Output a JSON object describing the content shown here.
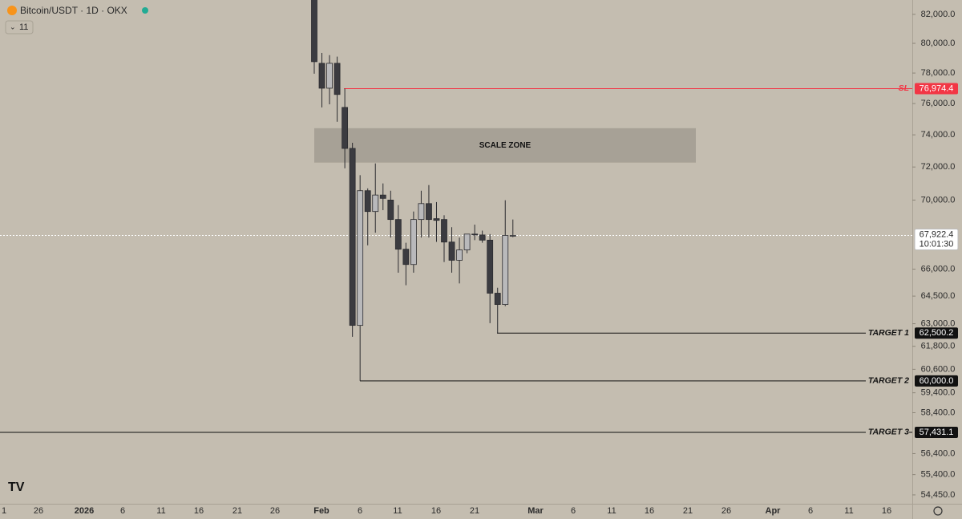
{
  "chart_data": {
    "type": "candlestick",
    "title": "Bitcoin/USDT · 1D · OKX",
    "indicator_count": 11,
    "log_scale": true,
    "ylim": [
      54040,
      83010
    ],
    "yticks": [
      {
        "value": 82000,
        "label": "82,000.0"
      },
      {
        "value": 80000,
        "label": "80,000.0"
      },
      {
        "value": 78000,
        "label": "78,000.0"
      },
      {
        "value": 76000,
        "label": "76,000.0"
      },
      {
        "value": 74000,
        "label": "74,000.0"
      },
      {
        "value": 72000,
        "label": "72,000.0"
      },
      {
        "value": 70000,
        "label": "70,000.0"
      },
      {
        "value": 66000,
        "label": "66,000.0"
      },
      {
        "value": 64500,
        "label": "64,500.0"
      },
      {
        "value": 63000,
        "label": "63,000.0"
      },
      {
        "value": 61800,
        "label": "61,800.0"
      },
      {
        "value": 60600,
        "label": "60,600.0"
      },
      {
        "value": 59400,
        "label": "59,400.0"
      },
      {
        "value": 58400,
        "label": "58,400.0"
      },
      {
        "value": 56400,
        "label": "56,400.0"
      },
      {
        "value": 55400,
        "label": "55,400.0"
      },
      {
        "value": 54450,
        "label": "54,450.0"
      }
    ],
    "xticks": [
      "1",
      "26",
      "2026",
      "6",
      "11",
      "16",
      "21",
      "26",
      "Feb",
      "6",
      "11",
      "16",
      "21",
      "Mar",
      "6",
      "11",
      "16",
      "21",
      "26",
      "Apr",
      "6",
      "11",
      "16"
    ],
    "up_color": "#b9b9bb",
    "down_color": "#3b3b40",
    "open": [
      84500,
      78650,
      77000,
      78650,
      75750,
      73150,
      62910,
      70560,
      69320,
      70300,
      70000,
      68850,
      67130,
      66260,
      68850,
      69790,
      68900,
      68850,
      67540,
      66500,
      67090,
      68000,
      67950,
      67650,
      64660,
      64040,
      67900
    ],
    "high": [
      85000,
      79350,
      79200,
      79100,
      76970,
      73500,
      71500,
      70700,
      72220,
      71000,
      70560,
      69700,
      67500,
      69320,
      70560,
      70900,
      69880,
      69100,
      68400,
      67800,
      67800,
      68550,
      68200,
      68000,
      64960,
      69990,
      68850
    ],
    "low": [
      77960,
      75750,
      75950,
      74830,
      71920,
      62300,
      60000,
      67350,
      68080,
      69400,
      67800,
      65800,
      65100,
      65800,
      67800,
      67800,
      67550,
      66400,
      65800,
      65200,
      66900,
      67650,
      67500,
      63030,
      62500,
      63950,
      67820
    ],
    "close": [
      78760,
      77000,
      78650,
      76590,
      73150,
      62910,
      70560,
      69320,
      70300,
      70100,
      68850,
      67130,
      66260,
      68850,
      69790,
      68850,
      68800,
      67540,
      66500,
      67090,
      68000,
      67950,
      67650,
      64660,
      64040,
      67922.4,
      67922.4
    ],
    "zone": {
      "label": "SCALE ZONE",
      "low": 72270,
      "high": 74420
    },
    "levels": [
      {
        "label": "SL",
        "value": 76974.4,
        "value_label": "76,974.4",
        "color": "#f23645"
      },
      {
        "label": "TARGET 1",
        "value": 62500.2,
        "value_label": "62,500.2",
        "color": "#111111"
      },
      {
        "label": "TARGET 2",
        "value": 60000.0,
        "value_label": "60,000.0",
        "color": "#111111"
      },
      {
        "label": "TARGET 3",
        "value": 57431.1,
        "value_label": "57,431.1",
        "color": "#111111"
      }
    ],
    "last_price": {
      "value": 67922.4,
      "value_label": "67,922.4",
      "countdown": "10:01:30"
    }
  }
}
